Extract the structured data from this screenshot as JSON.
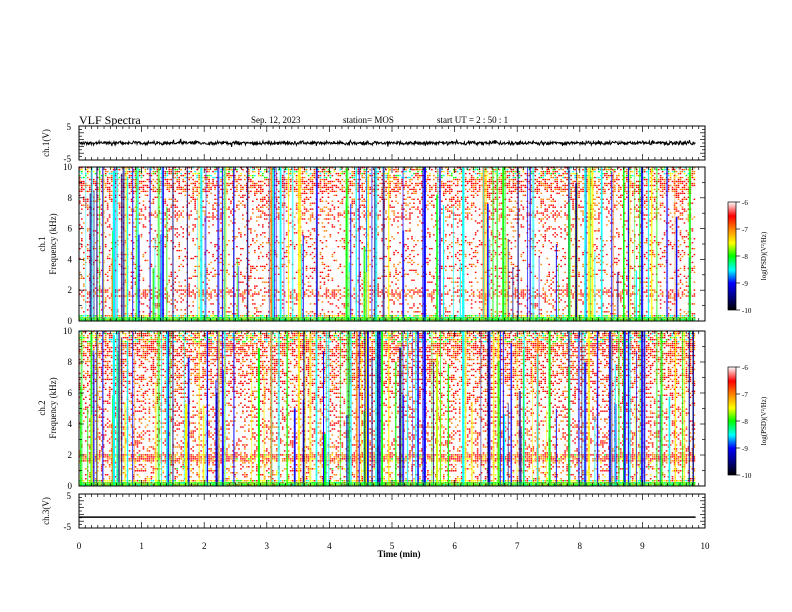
{
  "header": {
    "title": "VLF Spectra",
    "date": "Sep. 12, 2023",
    "station": "station= MOS",
    "start": "start  UT =   2 : 50 : 1"
  },
  "chart_data": [
    {
      "type": "line",
      "panel": "ch1-waveform",
      "ylabel": "ch.1(V)",
      "ylim": [
        -5,
        5
      ],
      "yticks": [
        "5",
        "-5"
      ],
      "xlim": [
        0,
        10
      ],
      "baseline_value": 0,
      "noise_amplitude": 0.4,
      "color": "#000000"
    },
    {
      "type": "heatmap",
      "panel": "ch1-spectrogram",
      "ylabel_top": "ch.1",
      "ylabel": "Frequency (kHz)",
      "ylim": [
        0,
        10
      ],
      "yticks": [
        "0",
        "2",
        "4",
        "6",
        "8",
        "10"
      ],
      "xlim": [
        0,
        9.85
      ],
      "colorbar": {
        "label": "log(PSD)(V²/Hz)",
        "range": [
          -10,
          -6
        ],
        "ticks": [
          "-6",
          "-7",
          "-8",
          "-9",
          "-10"
        ]
      }
    },
    {
      "type": "heatmap",
      "panel": "ch2-spectrogram",
      "ylabel_top": "ch.2",
      "ylabel": "Frequency (kHz)",
      "ylim": [
        0,
        10
      ],
      "yticks": [
        "0",
        "2",
        "4",
        "6",
        "8",
        "10"
      ],
      "xlim": [
        0,
        9.85
      ],
      "colorbar": {
        "label": "log(PSD)(V²/Hz)",
        "range": [
          -10,
          -6
        ],
        "ticks": [
          "-6",
          "-7",
          "-8",
          "-9",
          "-10"
        ]
      }
    },
    {
      "type": "line",
      "panel": "ch3-waveform",
      "ylabel": "ch.3(V)",
      "ylim": [
        -5,
        5
      ],
      "yticks": [
        "5",
        "-5"
      ],
      "xlim": [
        0,
        10
      ],
      "baseline_value": -1.8,
      "noise_amplitude": 0,
      "color": "#000000"
    }
  ],
  "xaxis": {
    "label": "Time  (min)",
    "ticks": [
      "0",
      "1",
      "2",
      "3",
      "4",
      "5",
      "6",
      "7",
      "8",
      "9",
      "10"
    ],
    "range": [
      0,
      10
    ]
  },
  "colors": {
    "dark_blue": "#000080",
    "blue": "#0000ff",
    "cyan": "#00ffff",
    "green": "#00ff00",
    "yellow": "#ffff00",
    "orange": "#ff8000",
    "red": "#ff0000",
    "white": "#ffffff"
  }
}
